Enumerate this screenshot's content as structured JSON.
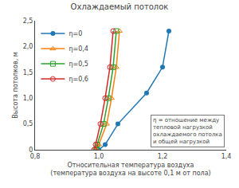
{
  "chart_data": {
    "type": "line",
    "title": "Охлаждаемый потолок",
    "xlabel": "Относительная температура воздуха\n(температура воздуха на высоте 0,1 м от пола)",
    "ylabel": "Высота потолков, м",
    "annotation": "η = отношение между\nтепловой нагрузкой\nохлаждаемого потолка\nи общей нагрузкой",
    "xlim": [
      0.8,
      1.4
    ],
    "ylim": [
      0.0,
      2.5
    ],
    "xticks": [
      {
        "value": 0.8,
        "label": "0,8"
      },
      {
        "value": 1.0,
        "label": "1,0"
      },
      {
        "value": 1.2,
        "label": "1,2"
      },
      {
        "value": 1.4,
        "label": "1,4"
      }
    ],
    "yticks": [
      0,
      {
        "value": 0.5,
        "label": "0,5"
      },
      {
        "value": 1.0,
        "label": "1,0"
      },
      {
        "value": 1.5,
        "label": "1,5"
      },
      {
        "value": 2.0,
        "label": "2,0"
      },
      {
        "value": 2.5,
        "label": "2,5"
      }
    ],
    "grid": false,
    "legend": "upper left",
    "series": [
      {
        "name": "η=0",
        "marker": "circle",
        "x": [
          1.0,
          1.02,
          1.06,
          1.15,
          1.2,
          1.22
        ],
        "values": [
          0.0,
          0.1,
          0.5,
          1.1,
          1.6,
          2.3
        ]
      },
      {
        "name": "η=0,4",
        "marker": "triangle-up-open",
        "x": [
          0.995,
          1.0,
          1.025,
          1.04,
          1.055,
          1.065
        ],
        "values": [
          0.0,
          0.1,
          0.5,
          1.0,
          1.6,
          2.3
        ]
      },
      {
        "name": "η=0,5",
        "marker": "square-open",
        "x": [
          0.99,
          0.995,
          1.015,
          1.03,
          1.045,
          1.055
        ],
        "values": [
          0.0,
          0.1,
          0.5,
          1.0,
          1.6,
          2.3
        ]
      },
      {
        "name": "η=0,6",
        "marker": "circle-open",
        "x": [
          0.985,
          0.99,
          1.005,
          1.02,
          1.035,
          1.045
        ],
        "values": [
          0.0,
          0.1,
          0.5,
          1.0,
          1.6,
          2.3
        ]
      }
    ]
  }
}
